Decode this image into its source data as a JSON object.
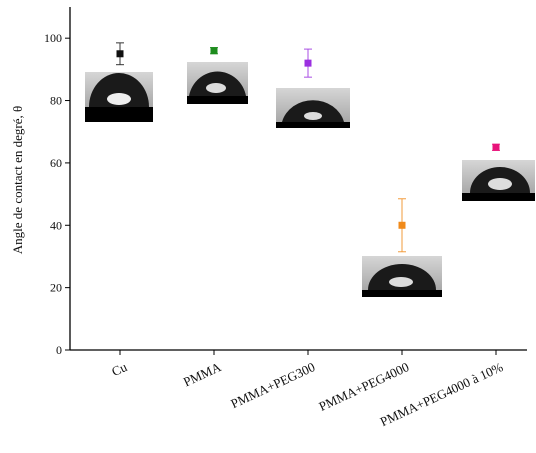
{
  "chart_data": {
    "type": "scatter",
    "y_label": "Angle de contact en degré, θ",
    "categories": [
      "Cu",
      "PMMA",
      "PMMA+PEG300",
      "PMMA+PEG4000",
      "PMMA+PEG4000 à 10%"
    ],
    "values": [
      95,
      96,
      92,
      40,
      65
    ],
    "errors": [
      3.5,
      1,
      4.5,
      8.5,
      1
    ],
    "colors": [
      "#111111",
      "#1e8c1e",
      "#9b30e0",
      "#f08a1a",
      "#e8137a"
    ],
    "ylim": [
      0,
      110
    ],
    "yticks": [
      0,
      20,
      40,
      60,
      80,
      100
    ]
  }
}
